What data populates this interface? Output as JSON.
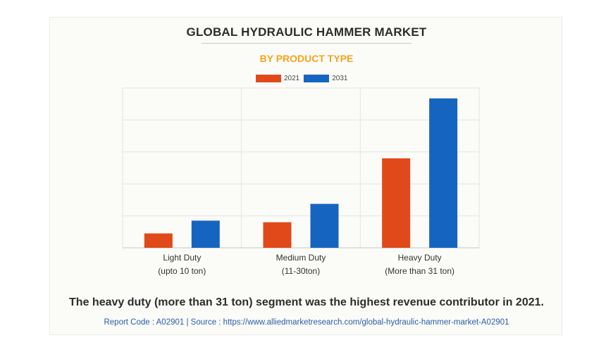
{
  "title": "GLOBAL HYDRAULIC HAMMER MARKET",
  "subtitle": "BY PRODUCT TYPE",
  "takeaway": "The heavy duty (more than 31 ton) segment was the highest revenue contributor in 2021.",
  "footer": "Report Code : A02901  |  Source : https://www.alliedmarketresearch.com/global-hydraulic-hammer-market-A02901",
  "colors": {
    "subtitle": "#f5a31a",
    "series_2021": "#e04a1a",
    "series_2031": "#1565c0"
  },
  "chart_data": {
    "type": "bar",
    "title": "GLOBAL HYDRAULIC HAMMER MARKET",
    "subtitle": "BY PRODUCT TYPE",
    "categories": [
      [
        "Light Duty",
        "(upto 10 ton)"
      ],
      [
        "Medium Duty",
        "(11-30ton)"
      ],
      [
        "Heavy Duty",
        "(More than 31 ton)"
      ]
    ],
    "series": [
      {
        "name": "2021",
        "values": [
          0.9,
          1.6,
          5.6
        ]
      },
      {
        "name": "2031",
        "values": [
          1.7,
          2.75,
          9.35
        ]
      }
    ],
    "ylim": [
      0,
      10
    ],
    "y_gridlines": [
      0,
      2,
      4,
      6,
      8,
      10
    ],
    "y_tick_labels_visible": false,
    "legend_position": "top-center",
    "grid": true
  }
}
